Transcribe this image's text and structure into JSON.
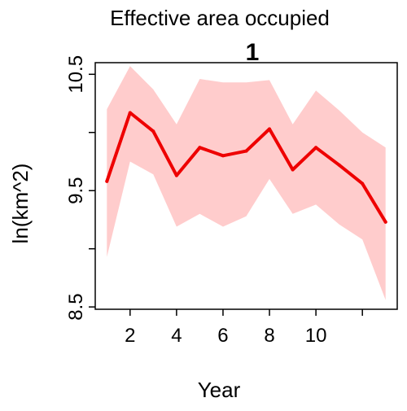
{
  "chart_data": {
    "type": "line",
    "title": "Effective area occupied",
    "subtitle": "1",
    "xlabel": "Year",
    "ylabel": "ln(km^2)",
    "xlim": [
      0.5,
      13.5
    ],
    "ylim": [
      8.48,
      10.6
    ],
    "x_ticks": [
      2,
      4,
      6,
      8,
      10,
      12
    ],
    "x_tick_labels": [
      "2",
      "4",
      "6",
      "8",
      "10",
      ""
    ],
    "y_ticks": [
      8.5,
      9.0,
      9.5,
      10.0,
      10.5
    ],
    "y_tick_labels": [
      "8.5",
      "",
      "9.5",
      "",
      "10.5"
    ],
    "grid": false,
    "series": [
      {
        "x": [
          1,
          2,
          3,
          4,
          5,
          6,
          7,
          8,
          9,
          10,
          11,
          12,
          13
        ],
        "values": [
          9.58,
          10.17,
          10.01,
          9.63,
          9.87,
          9.8,
          9.84,
          10.03,
          9.68,
          9.87,
          9.72,
          9.56,
          9.23
        ],
        "lower": [
          8.93,
          9.75,
          9.64,
          9.19,
          9.3,
          9.19,
          9.28,
          9.6,
          9.3,
          9.38,
          9.21,
          9.08,
          8.56
        ],
        "upper": [
          10.2,
          10.57,
          10.37,
          10.07,
          10.46,
          10.43,
          10.43,
          10.45,
          10.07,
          10.36,
          10.19,
          10.0,
          9.87
        ],
        "line_color": "#ee0000",
        "band_color": "#ffcccc"
      }
    ]
  }
}
